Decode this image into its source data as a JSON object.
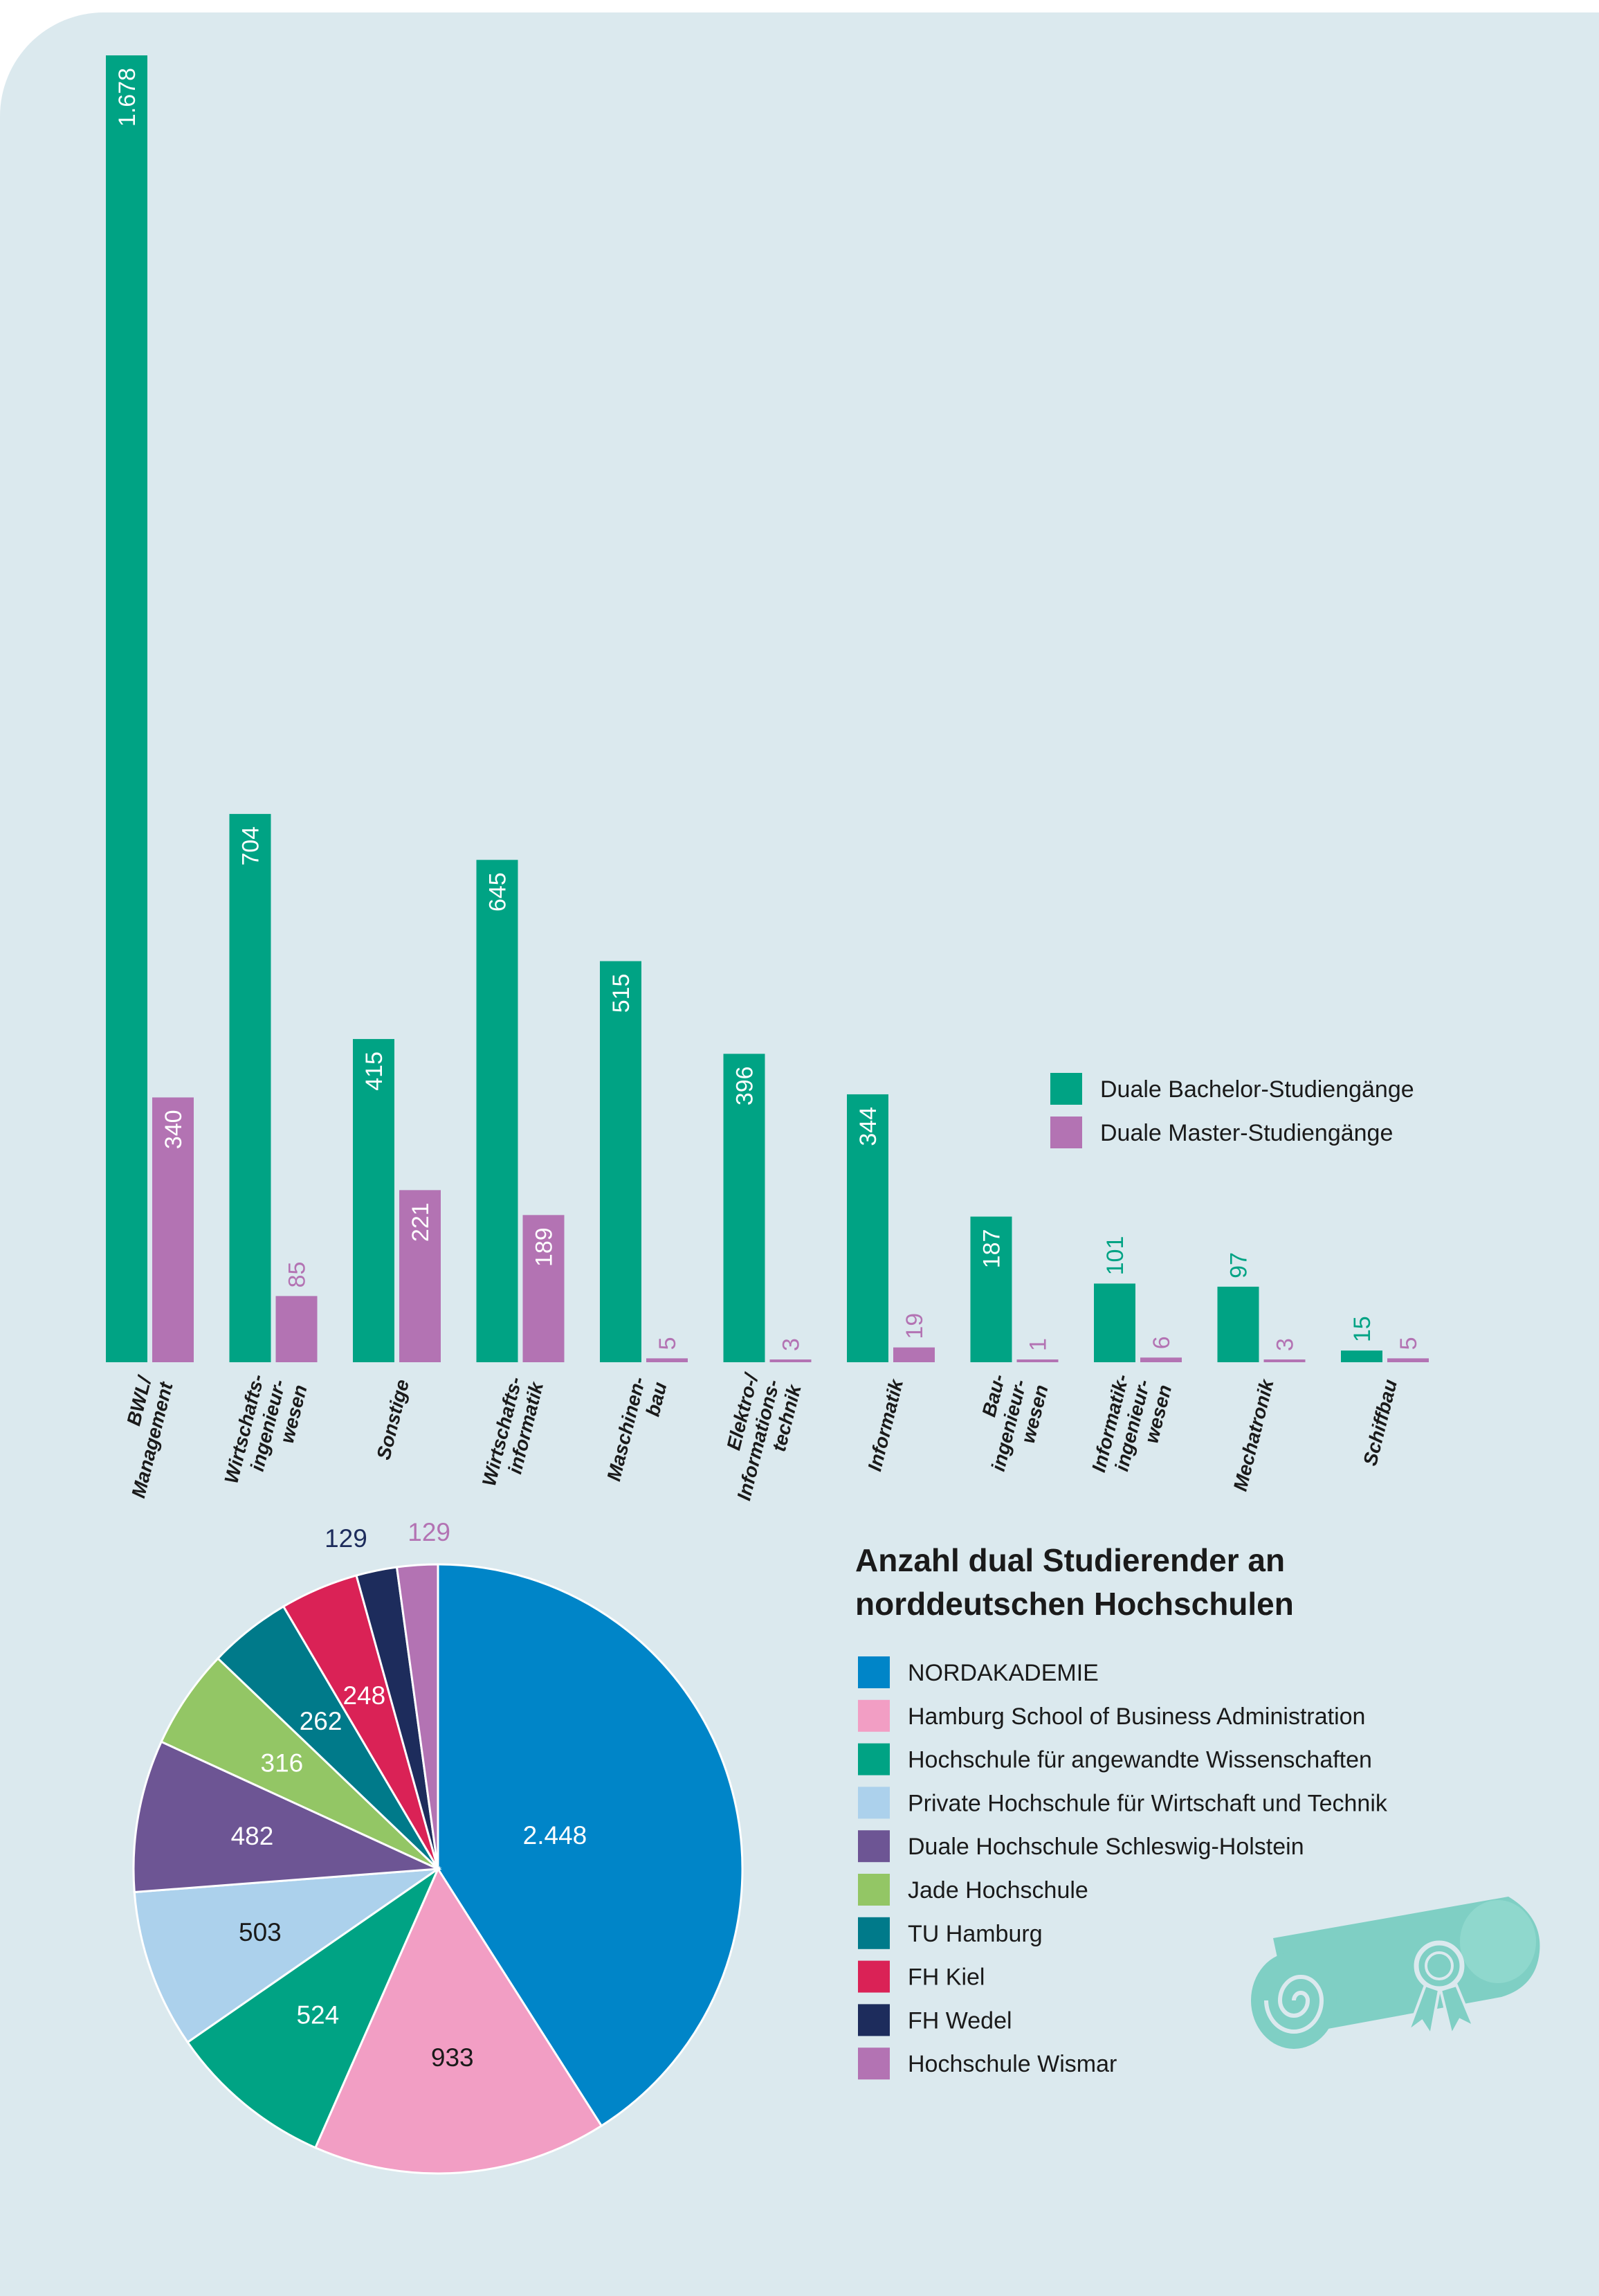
{
  "colors": {
    "bachelor": "#00a384",
    "master": "#b373b3",
    "background": "#dbe9ee",
    "scroll": "#7fcfc4"
  },
  "chart_data": [
    {
      "type": "bar",
      "categories": [
        [
          "BWL/",
          "Management"
        ],
        [
          "Wirtschafts-",
          "ingenieur-",
          "wesen"
        ],
        [
          "Sonstige"
        ],
        [
          "Wirtschafts-",
          "informatik"
        ],
        [
          "Maschinen-",
          "bau"
        ],
        [
          "Elektro-/",
          "Informations-",
          "technik"
        ],
        [
          "Informatik"
        ],
        [
          "Bau-",
          "ingenieur-",
          "wesen"
        ],
        [
          "Informatik-",
          "ingenieur-",
          "wesen"
        ],
        [
          "Mechatronik"
        ],
        [
          "Schiffbau"
        ]
      ],
      "series": [
        {
          "name": "Duale Bachelor-Studiengänge",
          "color": "#00a384",
          "values": [
            1678,
            704,
            415,
            645,
            515,
            396,
            344,
            187,
            101,
            97,
            15
          ],
          "labels": [
            "1.678",
            "704",
            "415",
            "645",
            "515",
            "396",
            "344",
            "187",
            "101",
            "97",
            "15"
          ]
        },
        {
          "name": "Duale Master-Studiengänge",
          "color": "#b373b3",
          "values": [
            340,
            85,
            221,
            189,
            5,
            3,
            19,
            1,
            6,
            3,
            5
          ],
          "labels": [
            "340",
            "85",
            "221",
            "189",
            "5",
            "3",
            "19",
            "1",
            "6",
            "3",
            "5"
          ]
        }
      ],
      "legend": "right",
      "ylim": [
        0,
        1678
      ],
      "grid": false
    },
    {
      "type": "pie",
      "title": [
        "Anzahl dual Studierender an",
        "norddeutschen Hochschulen"
      ],
      "slices": [
        {
          "label": "NORDAKADEMIE",
          "value": 2448,
          "value_label": "2.448",
          "color": "#0085c8",
          "text_color": "#ffffff"
        },
        {
          "label": "Hamburg School of Business Administration",
          "value": 933,
          "value_label": "933",
          "color": "#f29ec4",
          "text_color": "#1a1a1a"
        },
        {
          "label": "Hochschule für angewandte Wissenschaften",
          "value": 524,
          "value_label": "524",
          "color": "#00a384",
          "text_color": "#ffffff"
        },
        {
          "label": "Private Hochschule für Wirtschaft und Technik",
          "value": 503,
          "value_label": "503",
          "color": "#acd1ec",
          "text_color": "#1a1a1a"
        },
        {
          "label": "Duale Hochschule Schleswig-Holstein",
          "value": 482,
          "value_label": "482",
          "color": "#6d5594",
          "text_color": "#ffffff"
        },
        {
          "label": "Jade Hochschule",
          "value": 316,
          "value_label": "316",
          "color": "#93c665",
          "text_color": "#ffffff"
        },
        {
          "label": "TU Hamburg",
          "value": 262,
          "value_label": "262",
          "color": "#007a8a",
          "text_color": "#ffffff"
        },
        {
          "label": "FH Kiel",
          "value": 248,
          "value_label": "248",
          "color": "#da2256",
          "text_color": "#ffffff"
        },
        {
          "label": "FH Wedel",
          "value": 129,
          "value_label": "129",
          "color": "#1d2c5c",
          "text_color": "#1d2c5c"
        },
        {
          "label": "Hochschule Wismar",
          "value": 129,
          "value_label": "129",
          "color": "#b373b3",
          "text_color": "#b373b3"
        }
      ],
      "legend": "right"
    }
  ]
}
